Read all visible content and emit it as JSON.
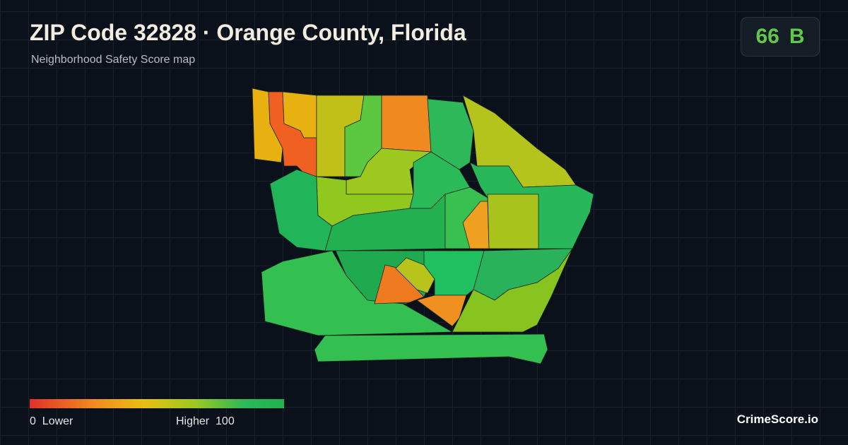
{
  "header": {
    "title": "ZIP Code 32828 · Orange County, Florida",
    "subtitle": "Neighborhood Safety Score map"
  },
  "score": {
    "value": "66",
    "grade": "B"
  },
  "legend": {
    "min": "0",
    "min_label": "Lower",
    "max_label": "Higher",
    "max": "100"
  },
  "brand": "CrimeScore.io"
}
